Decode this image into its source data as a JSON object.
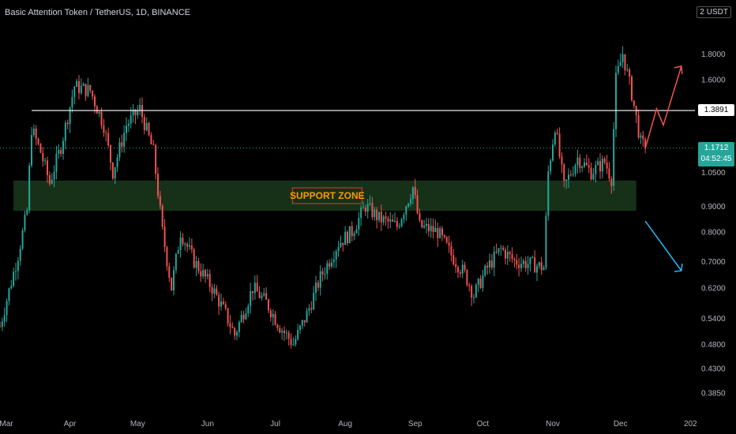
{
  "header": {
    "symbol_title": "Basic Attention Token / TetherUS, 1D, BINANCE",
    "scale_prefix": "2",
    "scale_currency": "USDT"
  },
  "badges": {
    "resistance_price": "1.3891",
    "current_price": "1.1712",
    "countdown": "04:52:45"
  },
  "colors": {
    "background": "#000000",
    "up_candle": "#26a69a",
    "down_candle": "#ef5350",
    "support_zone_fill": "#1b3a1c",
    "support_label_text": "#ff9800",
    "support_label_border": "#e53935",
    "bull_arrow": "#ef5350",
    "bear_arrow": "#29b6f6",
    "resistance_line": "#ffffff"
  },
  "chart_data": {
    "type": "candlestick",
    "title": "Basic Attention Token / TetherUS, 1D, BINANCE",
    "y_scale": "log",
    "ylim": [
      0.355,
      2.1
    ],
    "y_ticks": [
      "1.8000",
      "1.6000",
      "1.0500",
      "0.9000",
      "0.8000",
      "0.7000",
      "0.6200",
      "0.5400",
      "0.4800",
      "0.4300",
      "0.3850"
    ],
    "y_tick_values": [
      1.8,
      1.6,
      1.05,
      0.9,
      0.8,
      0.7,
      0.62,
      0.54,
      0.48,
      0.43,
      0.385
    ],
    "x_ticks": [
      "Mar",
      "Apr",
      "May",
      "Jun",
      "Jul",
      "Aug",
      "Sep",
      "Oct",
      "Nov",
      "Dec",
      "202"
    ],
    "x_tick_days": [
      0,
      31,
      61,
      92,
      122,
      153,
      184,
      214,
      245,
      275,
      306
    ],
    "resistance_level": 1.3891,
    "current_price": 1.1712,
    "support_zone": {
      "low": 0.88,
      "high": 1.01,
      "label": "SUPPORT ZONE"
    },
    "key_points": [
      {
        "day": 0,
        "price": 0.52
      },
      {
        "day": 8,
        "price": 0.72
      },
      {
        "day": 12,
        "price": 0.88
      },
      {
        "day": 14,
        "price": 1.28
      },
      {
        "day": 18,
        "price": 1.15
      },
      {
        "day": 22,
        "price": 1.0
      },
      {
        "day": 27,
        "price": 1.18
      },
      {
        "day": 33,
        "price": 1.55
      },
      {
        "day": 40,
        "price": 1.52
      },
      {
        "day": 46,
        "price": 1.3
      },
      {
        "day": 50,
        "price": 1.05
      },
      {
        "day": 56,
        "price": 1.3
      },
      {
        "day": 62,
        "price": 1.4
      },
      {
        "day": 68,
        "price": 1.15
      },
      {
        "day": 72,
        "price": 0.8
      },
      {
        "day": 76,
        "price": 0.62
      },
      {
        "day": 80,
        "price": 0.8
      },
      {
        "day": 86,
        "price": 0.7
      },
      {
        "day": 94,
        "price": 0.62
      },
      {
        "day": 100,
        "price": 0.55
      },
      {
        "day": 104,
        "price": 0.5
      },
      {
        "day": 112,
        "price": 0.62
      },
      {
        "day": 118,
        "price": 0.58
      },
      {
        "day": 124,
        "price": 0.52
      },
      {
        "day": 130,
        "price": 0.48
      },
      {
        "day": 136,
        "price": 0.55
      },
      {
        "day": 142,
        "price": 0.65
      },
      {
        "day": 150,
        "price": 0.76
      },
      {
        "day": 156,
        "price": 0.8
      },
      {
        "day": 162,
        "price": 0.9
      },
      {
        "day": 168,
        "price": 0.85
      },
      {
        "day": 176,
        "price": 0.82
      },
      {
        "day": 183,
        "price": 0.98
      },
      {
        "day": 186,
        "price": 0.82
      },
      {
        "day": 194,
        "price": 0.8
      },
      {
        "day": 200,
        "price": 0.72
      },
      {
        "day": 206,
        "price": 0.66
      },
      {
        "day": 210,
        "price": 0.6
      },
      {
        "day": 216,
        "price": 0.68
      },
      {
        "day": 222,
        "price": 0.74
      },
      {
        "day": 228,
        "price": 0.7
      },
      {
        "day": 236,
        "price": 0.69
      },
      {
        "day": 241,
        "price": 0.68
      },
      {
        "day": 243,
        "price": 1.05
      },
      {
        "day": 246,
        "price": 1.3
      },
      {
        "day": 250,
        "price": 0.98
      },
      {
        "day": 256,
        "price": 1.12
      },
      {
        "day": 262,
        "price": 1.05
      },
      {
        "day": 268,
        "price": 1.1
      },
      {
        "day": 271,
        "price": 1.02
      },
      {
        "day": 273,
        "price": 1.6
      },
      {
        "day": 276,
        "price": 1.8
      },
      {
        "day": 280,
        "price": 1.5
      },
      {
        "day": 284,
        "price": 1.2
      },
      {
        "day": 286,
        "price": 1.1712
      }
    ],
    "projection_up": [
      {
        "day": 286,
        "price": 1.17
      },
      {
        "day": 291,
        "price": 1.4
      },
      {
        "day": 294,
        "price": 1.3
      },
      {
        "day": 302,
        "price": 1.7
      }
    ],
    "projection_down": [
      {
        "day": 286,
        "price": 0.84
      },
      {
        "day": 302,
        "price": 0.67
      }
    ]
  }
}
